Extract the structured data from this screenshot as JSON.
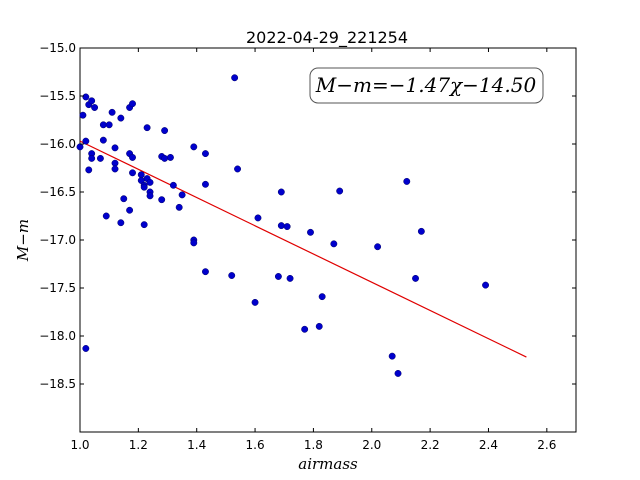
{
  "chart_data": {
    "type": "scatter",
    "title": "2022-04-29_221254",
    "xlabel": "airmass",
    "ylabel": "M−m",
    "xlim": [
      1.0,
      2.7
    ],
    "ylim": [
      -15.0,
      -19.0
    ],
    "y_inverted": true,
    "xticks": [
      "1.0",
      "1.2",
      "1.4",
      "1.6",
      "1.8",
      "2.0",
      "2.2",
      "2.4",
      "2.6"
    ],
    "yticks": [
      "−15.0",
      "−15.5",
      "−16.0",
      "−16.5",
      "−17.0",
      "−17.5",
      "−18.0",
      "−18.5"
    ],
    "grid": false,
    "annotation": "M−m=−1.47χ−14.50",
    "annotation_position": "top-right",
    "point_color": "#0000cc",
    "fit_color": "#e00000",
    "fit": {
      "slope": -1.47,
      "intercept": -14.5,
      "x_range": [
        1.0,
        2.53
      ]
    },
    "points": [
      [
        1.0,
        -16.03
      ],
      [
        1.01,
        -15.7
      ],
      [
        1.02,
        -15.51
      ],
      [
        1.02,
        -15.97
      ],
      [
        1.03,
        -16.27
      ],
      [
        1.02,
        -18.13
      ],
      [
        1.03,
        -15.59
      ],
      [
        1.04,
        -15.55
      ],
      [
        1.04,
        -16.1
      ],
      [
        1.04,
        -16.15
      ],
      [
        1.05,
        -15.62
      ],
      [
        1.07,
        -16.15
      ],
      [
        1.08,
        -15.8
      ],
      [
        1.08,
        -15.96
      ],
      [
        1.09,
        -16.75
      ],
      [
        1.1,
        -15.8
      ],
      [
        1.11,
        -15.67
      ],
      [
        1.12,
        -16.04
      ],
      [
        1.12,
        -16.2
      ],
      [
        1.12,
        -16.26
      ],
      [
        1.14,
        -15.73
      ],
      [
        1.14,
        -16.82
      ],
      [
        1.15,
        -16.57
      ],
      [
        1.17,
        -15.62
      ],
      [
        1.17,
        -16.1
      ],
      [
        1.17,
        -16.69
      ],
      [
        1.18,
        -15.58
      ],
      [
        1.18,
        -16.14
      ],
      [
        1.18,
        -16.3
      ],
      [
        1.21,
        -16.32
      ],
      [
        1.21,
        -16.38
      ],
      [
        1.22,
        -16.43
      ],
      [
        1.22,
        -16.45
      ],
      [
        1.22,
        -16.84
      ],
      [
        1.23,
        -16.36
      ],
      [
        1.23,
        -15.83
      ],
      [
        1.24,
        -16.4
      ],
      [
        1.24,
        -16.5
      ],
      [
        1.24,
        -16.54
      ],
      [
        1.28,
        -16.13
      ],
      [
        1.28,
        -16.58
      ],
      [
        1.29,
        -15.86
      ],
      [
        1.29,
        -16.15
      ],
      [
        1.31,
        -16.14
      ],
      [
        1.32,
        -16.43
      ],
      [
        1.34,
        -16.66
      ],
      [
        1.35,
        -16.53
      ],
      [
        1.39,
        -16.03
      ],
      [
        1.39,
        -17.0
      ],
      [
        1.39,
        -17.03
      ],
      [
        1.43,
        -16.1
      ],
      [
        1.43,
        -16.42
      ],
      [
        1.43,
        -17.33
      ],
      [
        1.52,
        -17.37
      ],
      [
        1.53,
        -15.31
      ],
      [
        1.54,
        -16.26
      ],
      [
        1.6,
        -17.65
      ],
      [
        1.61,
        -16.77
      ],
      [
        1.68,
        -17.38
      ],
      [
        1.69,
        -16.85
      ],
      [
        1.69,
        -16.5
      ],
      [
        1.71,
        -16.86
      ],
      [
        1.72,
        -17.4
      ],
      [
        1.77,
        -17.93
      ],
      [
        1.79,
        -16.92
      ],
      [
        1.82,
        -17.9
      ],
      [
        1.83,
        -17.59
      ],
      [
        1.87,
        -17.04
      ],
      [
        1.89,
        -16.49
      ],
      [
        2.02,
        -17.07
      ],
      [
        2.07,
        -18.21
      ],
      [
        2.09,
        -18.39
      ],
      [
        2.12,
        -16.39
      ],
      [
        2.15,
        -17.4
      ],
      [
        2.17,
        -16.91
      ],
      [
        2.39,
        -17.47
      ]
    ]
  }
}
